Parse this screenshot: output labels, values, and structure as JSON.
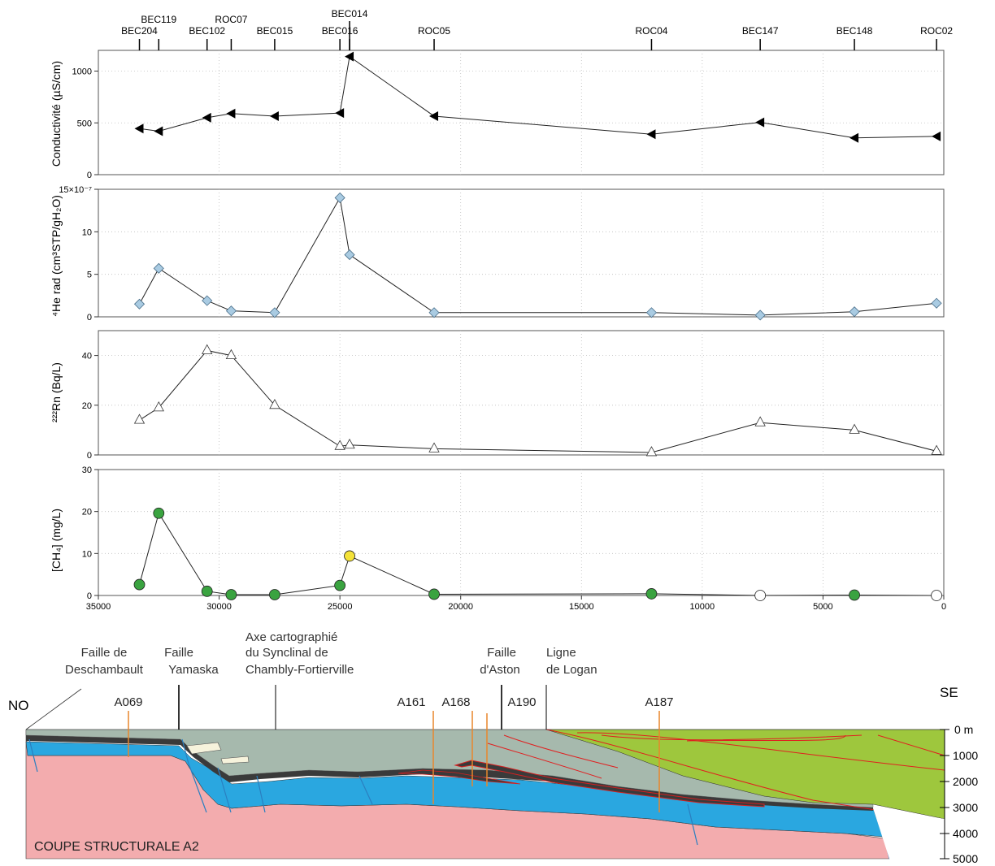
{
  "chart_data": {
    "type": "line",
    "x_axis": {
      "range": [
        35000,
        0
      ],
      "ticks": [
        35000,
        30000,
        25000,
        20000,
        15000,
        10000,
        5000,
        0
      ],
      "tick_labels": [
        "35000",
        "30000",
        "25000",
        "20000",
        "15000",
        "10000",
        "5000",
        "0"
      ],
      "grid": true
    },
    "wells": [
      {
        "name": "BEC204",
        "x": 33300,
        "row": 1
      },
      {
        "name": "BEC119",
        "x": 32500,
        "row": 0
      },
      {
        "name": "BEC102",
        "x": 30500,
        "row": 1
      },
      {
        "name": "ROC07",
        "x": 29500,
        "row": 0
      },
      {
        "name": "BEC015",
        "x": 27700,
        "row": 1
      },
      {
        "name": "BEC016",
        "x": 25000,
        "row": 1
      },
      {
        "name": "BEC014",
        "x": 24600,
        "row": -1
      },
      {
        "name": "ROC05",
        "x": 21100,
        "row": 1
      },
      {
        "name": "ROC04",
        "x": 12100,
        "row": 1
      },
      {
        "name": "BEC147",
        "x": 7600,
        "row": 1
      },
      {
        "name": "BEC148",
        "x": 3700,
        "row": 1
      },
      {
        "name": "ROC02",
        "x": 300,
        "row": 1
      }
    ],
    "panels": [
      {
        "id": "conductivity",
        "ylabel": "Conductivité (µS/cm)",
        "ylim": [
          0,
          1200
        ],
        "yticks": [
          0,
          500,
          1000
        ],
        "ytick_labels": [
          "0",
          "500",
          "1000"
        ],
        "marker": "triangle-left",
        "color": "#000000",
        "x": [
          33300,
          32500,
          30500,
          29500,
          27700,
          25000,
          24600,
          21100,
          12100,
          7600,
          3700,
          300
        ],
        "y": [
          445,
          420,
          550,
          590,
          565,
          595,
          1140,
          565,
          390,
          505,
          355,
          370
        ]
      },
      {
        "id": "helium",
        "ylabel": "⁴He rad (cm³STP/gH₂O)",
        "ylim": [
          0,
          15
        ],
        "yticks": [
          0,
          5,
          10,
          15
        ],
        "ytick_labels": [
          "0",
          "5",
          "10",
          "15×10⁻⁷"
        ],
        "marker": "diamond",
        "color": "#a9cbe2",
        "x": [
          33300,
          32500,
          30500,
          29500,
          27700,
          25000,
          24600,
          21100,
          12100,
          7600,
          3700,
          300
        ],
        "y": [
          1.5,
          5.7,
          1.9,
          0.7,
          0.5,
          14.0,
          7.3,
          0.5,
          0.5,
          0.2,
          0.6,
          1.6
        ]
      },
      {
        "id": "radon",
        "ylabel": "²²²Rn (Bq/L)",
        "ylim": [
          0,
          50
        ],
        "yticks": [
          0,
          20,
          40
        ],
        "ytick_labels": [
          "0",
          "20",
          "40"
        ],
        "marker": "triangle-up-open",
        "color": "#ffffff",
        "x": [
          33300,
          32500,
          30500,
          29500,
          27700,
          25000,
          24600,
          21100,
          12100,
          7600,
          3700,
          300
        ],
        "y": [
          14,
          19,
          42,
          40,
          20,
          3.5,
          4,
          2.5,
          1,
          13,
          10,
          1.5
        ]
      },
      {
        "id": "methane",
        "ylabel": "[CH₄] (mg/L)",
        "ylim": [
          0,
          30
        ],
        "yticks": [
          0,
          10,
          20,
          30
        ],
        "ytick_labels": [
          "0",
          "10",
          "20",
          "30"
        ],
        "marker": "circle",
        "x": [
          33300,
          32500,
          30500,
          29500,
          27700,
          25000,
          24600,
          21100,
          12100,
          7600,
          3700,
          300
        ],
        "y": [
          2.6,
          19.6,
          1.0,
          0.2,
          0.2,
          2.4,
          9.4,
          0.3,
          0.4,
          0.0,
          0.1,
          0.0
        ],
        "point_colors": [
          "#3aa340",
          "#3aa340",
          "#3aa340",
          "#3aa340",
          "#3aa340",
          "#3aa340",
          "#f4e239",
          "#3aa340",
          "#3aa340",
          "#ffffff",
          "#3aa340",
          "#ffffff"
        ]
      }
    ]
  },
  "section": {
    "title": "COUPE STRUCTURALE A2",
    "left_label": "NO",
    "right_label": "SE",
    "features": [
      {
        "id": "deschambault",
        "lines": [
          "Faille de",
          "Deschambault"
        ]
      },
      {
        "id": "yamaska",
        "lines": [
          "Faille",
          "Yamaska"
        ]
      },
      {
        "id": "synclinal",
        "lines": [
          "Axe cartographié",
          "du Synclinal de",
          "Chambly-Fortierville"
        ]
      },
      {
        "id": "aston",
        "lines": [
          "Faille",
          "d'Aston"
        ]
      },
      {
        "id": "logan",
        "lines": [
          "Ligne",
          "de Logan"
        ]
      }
    ],
    "wells": [
      "A069",
      "A161",
      "A168",
      "A190",
      "A187"
    ],
    "depth_labels": [
      "0 m",
      "1000",
      "2000",
      "3000",
      "4000",
      "5000"
    ],
    "colors": {
      "basement": "#f3acae",
      "blue_layer": "#2aa7e0",
      "dark_layer": "#3a3a3a",
      "grey_layer": "#a6b9ad",
      "green_layer": "#9ec73d",
      "fault_red": "#e02020",
      "well_orange": "#e8862b"
    }
  }
}
